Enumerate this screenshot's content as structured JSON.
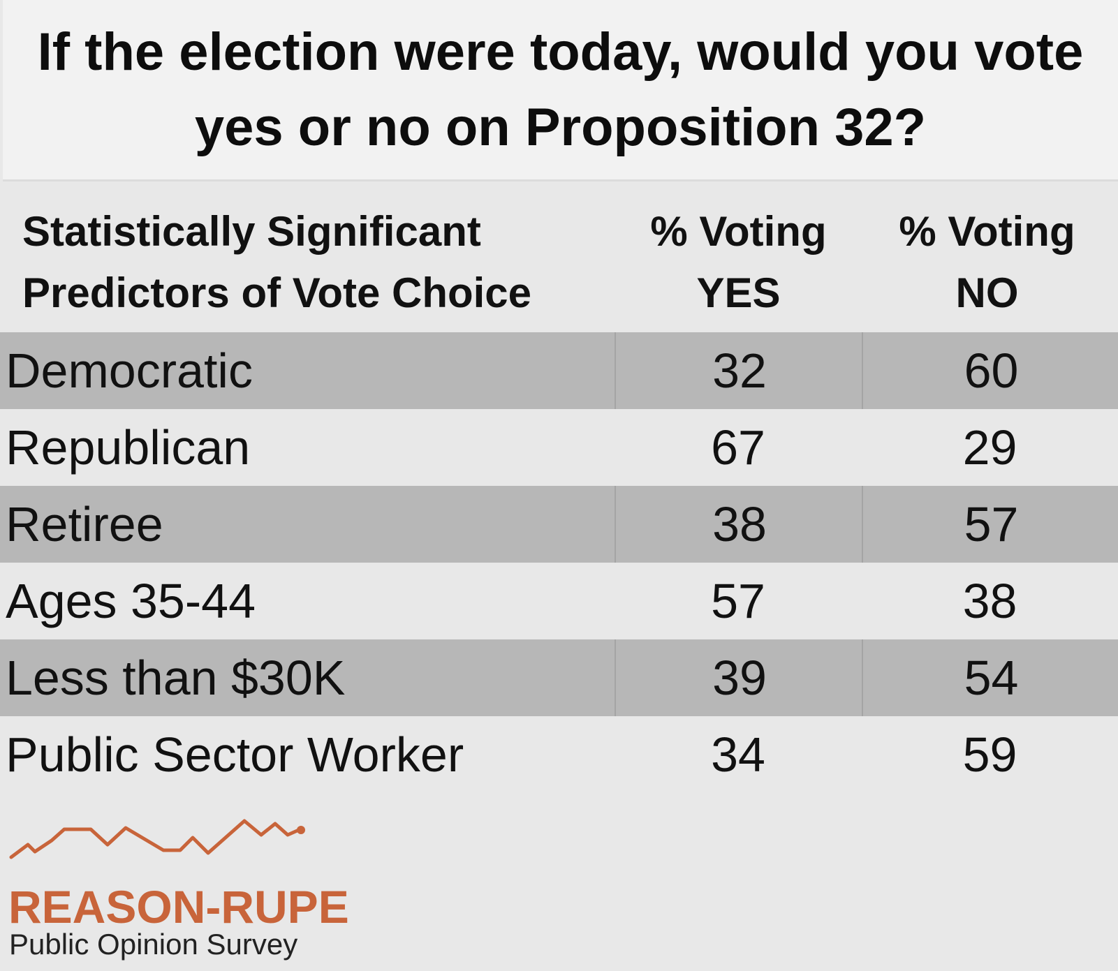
{
  "title": "If the election were today, would you vote yes or no on Proposition 32?",
  "header": {
    "label_col": "Statistically Significant Predictors of Vote Choice",
    "yes_col_line1": "% Voting",
    "yes_col_line2": "YES",
    "no_col_line1": "% Voting",
    "no_col_line2": "NO"
  },
  "chart_data": {
    "type": "table",
    "title": "If the election were today, would you vote yes or no on Proposition 32?",
    "columns": [
      "Statistically Significant Predictors of Vote Choice",
      "% Voting YES",
      "% Voting NO"
    ],
    "rows": [
      {
        "label": "Democratic",
        "yes": 32,
        "no": 60
      },
      {
        "label": "Republican",
        "yes": 67,
        "no": 29
      },
      {
        "label": "Retiree",
        "yes": 38,
        "no": 57
      },
      {
        "label": "Ages 35-44",
        "yes": 57,
        "no": 38
      },
      {
        "label": "Less than $30K",
        "yes": 39,
        "no": 54
      },
      {
        "label": "Public Sector Worker",
        "yes": 34,
        "no": 59
      }
    ]
  },
  "logo": {
    "name": "REASON-RUPE",
    "subtitle": "Public Opinion Survey",
    "color": "#c8643a"
  },
  "colors": {
    "background": "#e8e8e8",
    "title_background": "#f2f2f2",
    "shaded_row": "#b7b7b7",
    "accent": "#c8643a"
  }
}
